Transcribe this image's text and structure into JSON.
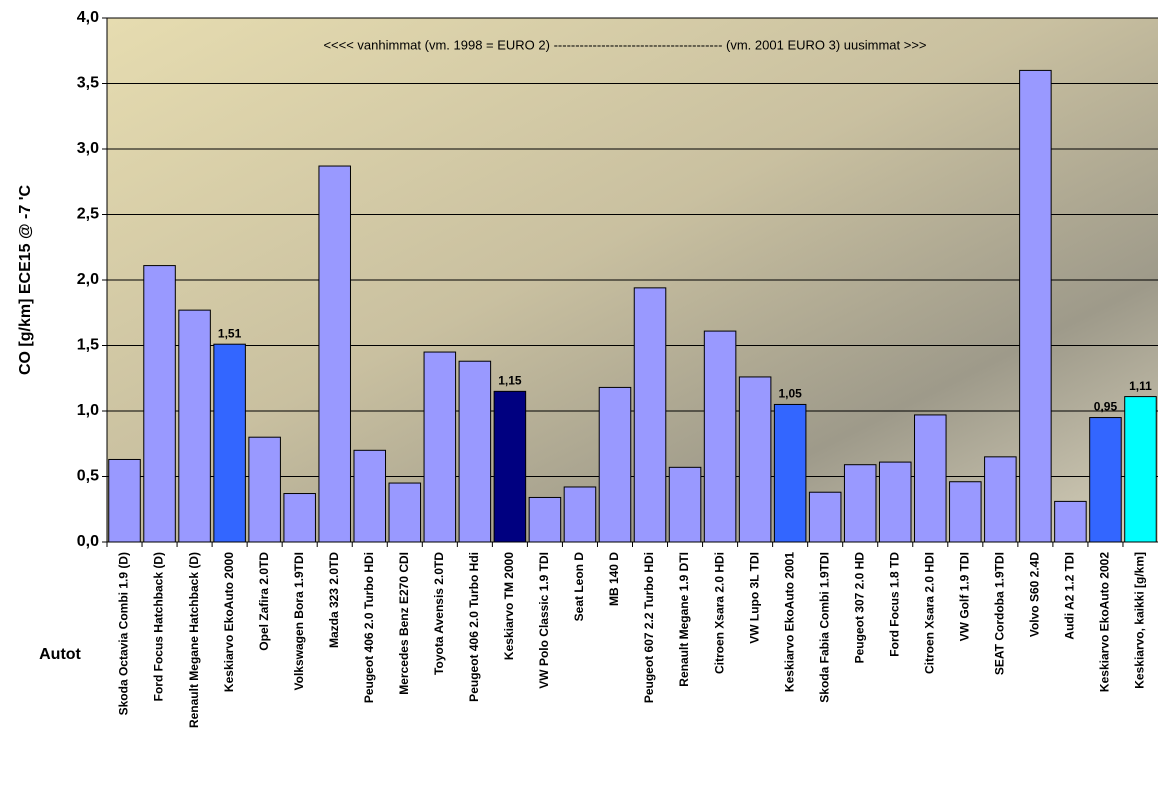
{
  "chart_data": {
    "type": "bar",
    "annotation": "<<<< vanhimmat  (vm. 1998 = EURO 2)  ---------------------------------------  (vm. 2001 EURO 3)  uusimmat >>>",
    "y_label": "CO [g/km] ECE15 @ -7 'C",
    "x_label": "Autot",
    "categories": [
      "Skoda Octavia Combi 1.9 (D)",
      "Ford Focus Hatchback (D)",
      "Renault Megane Hatchback (D)",
      "Keskiarvo EkoAuto 2000",
      "Opel Zafira 2.0TD",
      "Volkswagen Bora 1.9TDI",
      "Mazda 323 2.0TD",
      "Peugeot 406  2.0 Turbo HDi",
      "Mercedes Benz E270 CDI",
      "Toyota Avensis 2.0TD",
      "Peugeot 406  2.0 Turbo Hdi",
      "Keskiarvo  TM 2000",
      "VW Polo Classic 1.9 TDI",
      "Seat Leon  D",
      "MB 140 D",
      "Peugeot 607 2.2 Turbo HDi",
      "Renault Megane 1.9 DTI",
      "Citroen Xsara 2.0 HDi",
      "VW Lupo 3L TDI",
      "Keskiarvo EkoAuto 2001",
      "Skoda Fabia Combi 1.9TDI",
      "Peugeot 307 2.0 HD",
      "Ford Focus 1.8 TD",
      "Citroen Xsara 2.0 HDI",
      "VW  Golf 1.9 TDI",
      "SEAT Cordoba 1.9TDI",
      "Volvo S60 2.4D",
      "Audi A2 1.2 TDI",
      "Keskiarvo EkoAuto 2002",
      "Keskiarvo, kaikki [g/km]"
    ],
    "values": [
      0.63,
      2.11,
      1.77,
      1.51,
      0.8,
      0.37,
      2.87,
      0.7,
      0.45,
      1.45,
      1.38,
      1.15,
      0.34,
      0.42,
      1.18,
      1.94,
      0.57,
      1.61,
      1.26,
      1.05,
      0.38,
      0.59,
      0.61,
      0.97,
      0.46,
      0.65,
      3.6,
      0.31,
      0.95,
      1.11
    ],
    "value_labels": [
      null,
      null,
      null,
      "1,51",
      null,
      null,
      null,
      null,
      null,
      null,
      null,
      "1,15",
      null,
      null,
      null,
      null,
      null,
      null,
      null,
      "1,05",
      null,
      null,
      null,
      null,
      null,
      null,
      null,
      null,
      "0,95",
      "1,11"
    ],
    "colors": [
      "#9999ff",
      "#9999ff",
      "#9999ff",
      "#3366ff",
      "#9999ff",
      "#9999ff",
      "#9999ff",
      "#9999ff",
      "#9999ff",
      "#9999ff",
      "#9999ff",
      "#000080",
      "#9999ff",
      "#9999ff",
      "#9999ff",
      "#9999ff",
      "#9999ff",
      "#9999ff",
      "#9999ff",
      "#3366ff",
      "#9999ff",
      "#9999ff",
      "#9999ff",
      "#9999ff",
      "#9999ff",
      "#9999ff",
      "#9999ff",
      "#9999ff",
      "#3366ff",
      "#00ffff"
    ],
    "ylim": [
      0,
      4
    ],
    "yticks": [
      {
        "value": 0,
        "label": "0,0"
      },
      {
        "value": 0.5,
        "label": "0,5"
      },
      {
        "value": 1,
        "label": "1,0"
      },
      {
        "value": 1.5,
        "label": "1,5"
      },
      {
        "value": 2,
        "label": "2,0"
      },
      {
        "value": 2.5,
        "label": "2,5"
      },
      {
        "value": 3,
        "label": "3,0"
      },
      {
        "value": 3.5,
        "label": "3,5"
      },
      {
        "value": 4,
        "label": "4,0"
      }
    ],
    "grid": true
  }
}
